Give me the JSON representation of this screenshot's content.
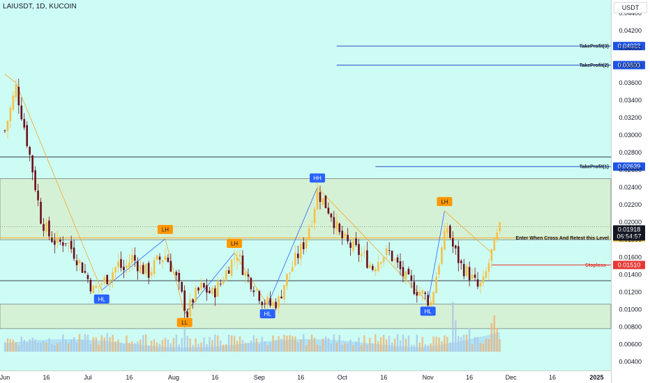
{
  "title": "LAIUSDT, 1D, KUCOIN",
  "currency": "USDT",
  "colors": {
    "background": "#cdfcf4",
    "up_candle": "#f5c046",
    "down_candle": "#6b0f1a",
    "zone": "#d6f0d2",
    "tp_line": "#2b4fcf",
    "stop_line": "#e53935",
    "entry_line": "#f5a623",
    "hh_tag": "#2962ff",
    "lh_tag": "#ff9800"
  },
  "chart_data": {
    "type": "candlestick",
    "y_axis": {
      "min": 0.003,
      "max": 0.0455,
      "ticks": [
        "0.00400",
        "0.00600",
        "0.00800",
        "0.01000",
        "0.01200",
        "0.01400",
        "0.01600",
        "0.01800",
        "0.02000",
        "0.02200",
        "0.02400",
        "0.02600",
        "0.02800",
        "0.03000",
        "0.03200",
        "0.03400",
        "0.03600",
        "0.03800",
        "0.04000",
        "0.04200",
        "0.04400"
      ]
    },
    "x_axis": {
      "ticks": [
        {
          "label": "Jun",
          "day": 0
        },
        {
          "label": "16",
          "day": 15
        },
        {
          "label": "Jul",
          "day": 30
        },
        {
          "label": "16",
          "day": 45
        },
        {
          "label": "Aug",
          "day": 61
        },
        {
          "label": "16",
          "day": 76
        },
        {
          "label": "Sep",
          "day": 92
        },
        {
          "label": "16",
          "day": 107
        },
        {
          "label": "Oct",
          "day": 122
        },
        {
          "label": "16",
          "day": 137
        },
        {
          "label": "Nov",
          "day": 153
        },
        {
          "label": "16",
          "day": 168
        },
        {
          "label": "Dec",
          "day": 183
        },
        {
          "label": "16",
          "day": 198
        },
        {
          "label": "2025",
          "day": 214
        }
      ],
      "last_candle_day": 179
    },
    "anchors": [
      [
        0,
        0.0305
      ],
      [
        4,
        0.0355
      ],
      [
        7,
        0.031
      ],
      [
        10,
        0.026
      ],
      [
        13,
        0.0205
      ],
      [
        16,
        0.0185
      ],
      [
        19,
        0.0175
      ],
      [
        22,
        0.018
      ],
      [
        25,
        0.0165
      ],
      [
        28,
        0.0148
      ],
      [
        32,
        0.0122
      ],
      [
        35,
        0.013
      ],
      [
        38,
        0.014
      ],
      [
        41,
        0.0152
      ],
      [
        43,
        0.0145
      ],
      [
        46,
        0.016
      ],
      [
        49,
        0.0148
      ],
      [
        52,
        0.0142
      ],
      [
        55,
        0.0155
      ],
      [
        58,
        0.0162
      ],
      [
        60,
        0.015
      ],
      [
        62,
        0.0135
      ],
      [
        64,
        0.0115
      ],
      [
        66,
        0.0095
      ],
      [
        68,
        0.0112
      ],
      [
        71,
        0.0125
      ],
      [
        75,
        0.0118
      ],
      [
        78,
        0.013
      ],
      [
        81,
        0.015
      ],
      [
        84,
        0.0165
      ],
      [
        87,
        0.014
      ],
      [
        90,
        0.0128
      ],
      [
        93,
        0.0112
      ],
      [
        96,
        0.0105
      ],
      [
        99,
        0.011
      ],
      [
        101,
        0.013
      ],
      [
        104,
        0.015
      ],
      [
        108,
        0.0175
      ],
      [
        111,
        0.0205
      ],
      [
        113,
        0.0235
      ],
      [
        115,
        0.0225
      ],
      [
        118,
        0.021
      ],
      [
        121,
        0.0185
      ],
      [
        124,
        0.0175
      ],
      [
        127,
        0.0168
      ],
      [
        130,
        0.016
      ],
      [
        133,
        0.0148
      ],
      [
        136,
        0.0162
      ],
      [
        139,
        0.0165
      ],
      [
        142,
        0.015
      ],
      [
        145,
        0.0135
      ],
      [
        148,
        0.0125
      ],
      [
        151,
        0.0118
      ],
      [
        154,
        0.0108
      ],
      [
        157,
        0.0155
      ],
      [
        160,
        0.0195
      ],
      [
        162,
        0.0172
      ],
      [
        165,
        0.015
      ],
      [
        168,
        0.014
      ],
      [
        171,
        0.0125
      ],
      [
        173,
        0.013
      ],
      [
        176,
        0.0165
      ],
      [
        179,
        0.0192
      ]
    ],
    "volume_spikes": [
      [
        37,
        0.35
      ],
      [
        65,
        0.5
      ],
      [
        162,
        0.95
      ],
      [
        163,
        0.6
      ],
      [
        168,
        0.45
      ],
      [
        176,
        0.55
      ],
      [
        177,
        0.7
      ],
      [
        178,
        0.45
      ]
    ],
    "current_price": "0.01918",
    "countdown": "06:54:57",
    "levels": [
      {
        "label": "TakeProfit(3)",
        "value": 0.04022,
        "tag": "0.04022",
        "kind": "tp",
        "x_start_day": 120
      },
      {
        "label": "TakeProfit(2)",
        "value": 0.03803,
        "tag": "0.03803",
        "kind": "tp",
        "x_start_day": 120
      },
      {
        "label": "TakeProfit(1)",
        "value": 0.02639,
        "tag": "0.02639",
        "kind": "tp",
        "x_start_day": 134
      },
      {
        "label": "Enter When Cross And Retest this Level",
        "value": 0.01821,
        "tag": "0.01821",
        "kind": "entry",
        "x_start_day": 0
      },
      {
        "label": "Stoploss",
        "value": 0.0151,
        "tag": "0.01510",
        "kind": "stop",
        "x_start_day": 176
      }
    ],
    "horizontal_lines": [
      0.0275,
      0.0133
    ],
    "zones": [
      [
        0.018,
        0.025
      ],
      [
        0.0078,
        0.0106
      ]
    ],
    "swing_labels": [
      {
        "text": "HL",
        "day": 35,
        "price": 0.0122,
        "pos": "below",
        "kind": "high"
      },
      {
        "text": "LH",
        "day": 58,
        "price": 0.0181,
        "pos": "above",
        "kind": "low"
      },
      {
        "text": "LL",
        "day": 65,
        "price": 0.0095,
        "pos": "below",
        "kind": "low"
      },
      {
        "text": "LH",
        "day": 83,
        "price": 0.0165,
        "pos": "above",
        "kind": "low"
      },
      {
        "text": "HL",
        "day": 95,
        "price": 0.0105,
        "pos": "below",
        "kind": "high"
      },
      {
        "text": "HH",
        "day": 113,
        "price": 0.024,
        "pos": "above",
        "kind": "high"
      },
      {
        "text": "HL",
        "day": 153,
        "price": 0.0108,
        "pos": "below",
        "kind": "high"
      },
      {
        "text": "LH",
        "day": 159,
        "price": 0.0213,
        "pos": "above",
        "kind": "low"
      }
    ]
  }
}
